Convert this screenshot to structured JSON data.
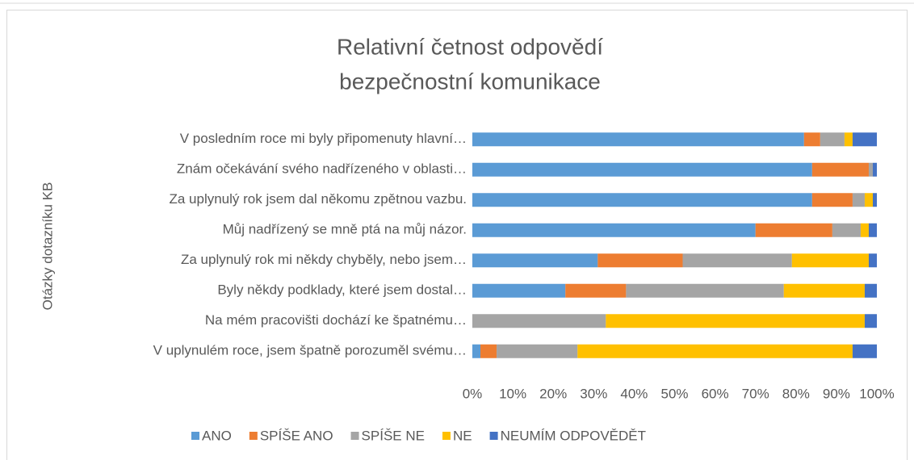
{
  "chart_data": {
    "type": "stacked_bar_horizontal",
    "title": [
      "Relativní četnost odpovědí",
      "bezpečnostní komunikace"
    ],
    "y_axis_label": "Otázky dotazníku KB",
    "categories": [
      "V posledním roce mi byly připomenuty hlavní…",
      "Znám očekávání svého nadřízeného v oblasti…",
      "Za uplynulý rok jsem dal někomu zpětnou vazbu.",
      "Můj nadřízený se mně ptá na můj názor.",
      "Za uplynulý rok mi někdy chyběly, nebo jsem…",
      "Byly někdy podklady, které jsem dostal…",
      "Na mém pracovišti dochází ke špatnému…",
      "V uplynulém roce, jsem špatně porozuměl svému…"
    ],
    "series": [
      {
        "name": "ANO",
        "color": "#5b9bd5",
        "values": [
          82,
          84,
          84,
          70,
          31,
          23,
          0,
          2
        ]
      },
      {
        "name": "SPÍŠE ANO",
        "color": "#ed7d31",
        "values": [
          4,
          14,
          10,
          19,
          21,
          15,
          0,
          4
        ]
      },
      {
        "name": "SPÍŠE NE",
        "color": "#a5a5a5",
        "values": [
          6,
          1,
          3,
          7,
          27,
          39,
          33,
          20
        ]
      },
      {
        "name": "NE",
        "color": "#ffc000",
        "values": [
          2,
          0,
          2,
          2,
          19,
          20,
          64,
          68
        ]
      },
      {
        "name": "NEUMÍM ODPOVĚDĚT",
        "color": "#4472c4",
        "values": [
          6,
          1,
          1,
          2,
          2,
          3,
          3,
          6
        ]
      }
    ],
    "xlim": [
      0,
      100
    ],
    "xticks": [
      {
        "value": 0,
        "label": "0%"
      },
      {
        "value": 10,
        "label": "10%"
      },
      {
        "value": 20,
        "label": "20%"
      },
      {
        "value": 30,
        "label": "30%"
      },
      {
        "value": 40,
        "label": "40%"
      },
      {
        "value": 50,
        "label": "50%"
      },
      {
        "value": 60,
        "label": "60%"
      },
      {
        "value": 70,
        "label": "70%"
      },
      {
        "value": 80,
        "label": "80%"
      },
      {
        "value": 90,
        "label": "90%"
      },
      {
        "value": 100,
        "label": "100%"
      }
    ],
    "grid": false,
    "legend": "bottom"
  }
}
